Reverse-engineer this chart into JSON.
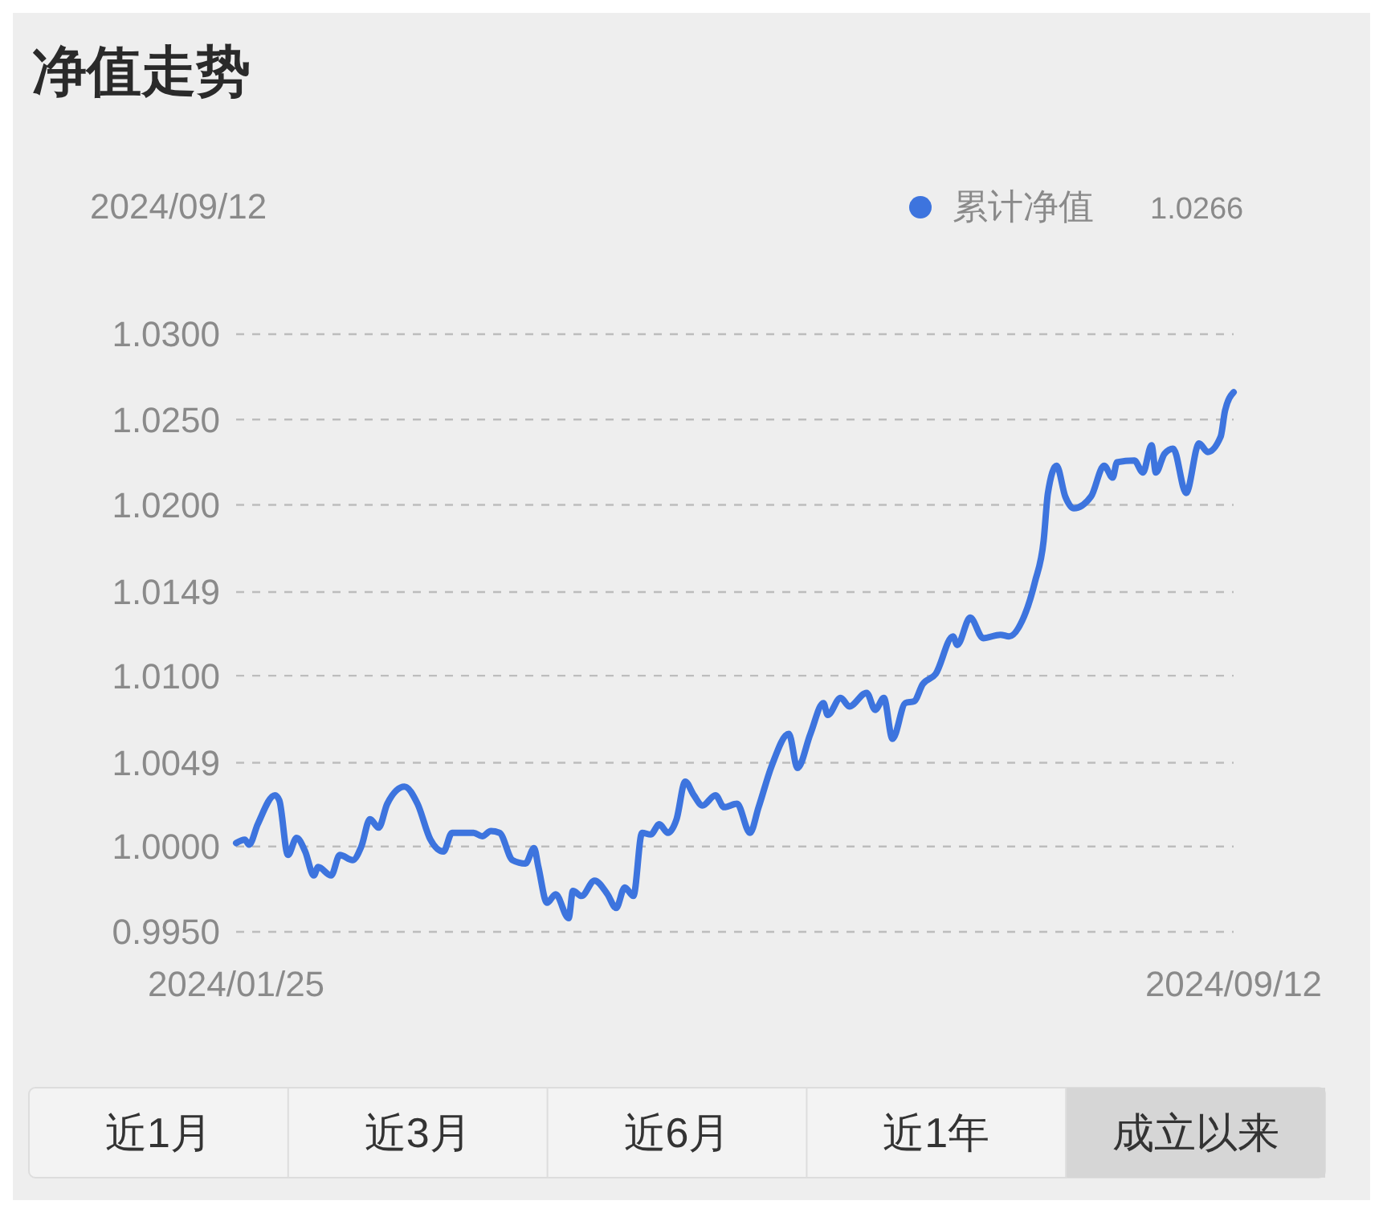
{
  "chart_data": {
    "type": "line",
    "title": "净值走势",
    "x": [
      "2024-01-25",
      "2024-01-27",
      "2024-01-28",
      "2024-01-30",
      "2024-02-03",
      "2024-02-04",
      "2024-02-06",
      "2024-02-08",
      "2024-02-10",
      "2024-02-12",
      "2024-02-13",
      "2024-02-16",
      "2024-02-18",
      "2024-02-21",
      "2024-02-23",
      "2024-02-25",
      "2024-02-27",
      "2024-02-29",
      "2024-03-04",
      "2024-03-07",
      "2024-03-10",
      "2024-03-13",
      "2024-03-15",
      "2024-03-20",
      "2024-03-22",
      "2024-03-24",
      "2024-03-26",
      "2024-03-29",
      "2024-04-01",
      "2024-04-03",
      "2024-04-04",
      "2024-04-06",
      "2024-04-08",
      "2024-04-11",
      "2024-04-12",
      "2024-04-14",
      "2024-04-17",
      "2024-04-20",
      "2024-04-22",
      "2024-04-24",
      "2024-04-26",
      "2024-04-28",
      "2024-04-30",
      "2024-05-02",
      "2024-05-04",
      "2024-05-06",
      "2024-05-08",
      "2024-05-10",
      "2024-05-12",
      "2024-05-15",
      "2024-05-17",
      "2024-05-20",
      "2024-05-23",
      "2024-05-25",
      "2024-05-28",
      "2024-06-01",
      "2024-06-03",
      "2024-06-06",
      "2024-06-09",
      "2024-06-10",
      "2024-06-13",
      "2024-06-15",
      "2024-06-19",
      "2024-06-21",
      "2024-06-23",
      "2024-06-25",
      "2024-06-28",
      "2024-06-30",
      "2024-07-02",
      "2024-07-05",
      "2024-07-09",
      "2024-07-10",
      "2024-07-13",
      "2024-07-16",
      "2024-07-20",
      "2024-07-22",
      "2024-07-25",
      "2024-07-28",
      "2024-07-30",
      "2024-07-31",
      "2024-08-02",
      "2024-08-04",
      "2024-08-06",
      "2024-08-10",
      "2024-08-13",
      "2024-08-15",
      "2024-08-16",
      "2024-08-20",
      "2024-08-22",
      "2024-08-24",
      "2024-08-25",
      "2024-08-27",
      "2024-08-29",
      "2024-09-01",
      "2024-09-04",
      "2024-09-06",
      "2024-09-09",
      "2024-09-10",
      "2024-09-12"
    ],
    "series": [
      {
        "name": "累计净值",
        "color": "#3d74de",
        "values": [
          1.0002,
          1.0004,
          1.0001,
          1.0013,
          1.003,
          1.0027,
          0.9995,
          1.0005,
          0.9997,
          0.9983,
          0.9988,
          0.9983,
          0.9995,
          0.9992,
          1.0,
          1.0016,
          1.0011,
          1.0025,
          1.0035,
          1.0025,
          1.0004,
          0.9997,
          1.0008,
          1.0008,
          1.0006,
          1.0009,
          1.0008,
          0.9992,
          0.999,
          0.9999,
          0.9988,
          0.9967,
          0.9972,
          0.9958,
          0.9974,
          0.9971,
          0.998,
          0.9972,
          0.9964,
          0.9976,
          0.9971,
          1.0008,
          1.0007,
          1.0013,
          1.0008,
          1.0016,
          1.0038,
          1.003,
          1.0024,
          1.003,
          1.0023,
          1.0025,
          1.0008,
          1.0023,
          1.0047,
          1.0066,
          1.0046,
          1.0066,
          1.0084,
          1.0077,
          1.0087,
          1.0082,
          1.009,
          1.008,
          1.0087,
          1.0063,
          1.0084,
          1.0085,
          1.0095,
          1.0101,
          1.0123,
          1.0118,
          1.0134,
          1.0122,
          1.0124,
          1.0123,
          1.0132,
          1.0155,
          1.0179,
          1.0207,
          1.0223,
          1.0205,
          1.0198,
          1.0205,
          1.0223,
          1.0216,
          1.0225,
          1.0226,
          1.0219,
          1.0235,
          1.0219,
          1.023,
          1.0233,
          1.0207,
          1.0236,
          1.0231,
          1.024,
          1.0255,
          1.0266
        ]
      }
    ],
    "xlim": [
      "2024-01-25",
      "2024-09-12"
    ],
    "xticks": [
      {
        "value": "2024-01-25",
        "label": "2024/01/25"
      },
      {
        "value": "2024-09-12",
        "label": "2024/09/12"
      }
    ],
    "ylim": [
      0.995,
      1.03
    ],
    "yticks": [
      {
        "value": 0.995,
        "label": "0.9950"
      },
      {
        "value": 1.0,
        "label": "1.0000"
      },
      1.0049,
      {
        "value": 1.01,
        "label": "1.0100"
      },
      1.0149,
      {
        "value": 1.02,
        "label": "1.0200"
      },
      {
        "value": 1.025,
        "label": "1.0250"
      },
      {
        "value": 1.03,
        "label": "1.0300"
      }
    ],
    "grid": "y",
    "legend": "top right",
    "marker": "none",
    "line_style": "solid",
    "annotations": [
      "2024/09/12",
      "1.0266",
      "近1月",
      "近3月",
      "近6月",
      "近1年",
      "成立以来"
    ]
  }
}
